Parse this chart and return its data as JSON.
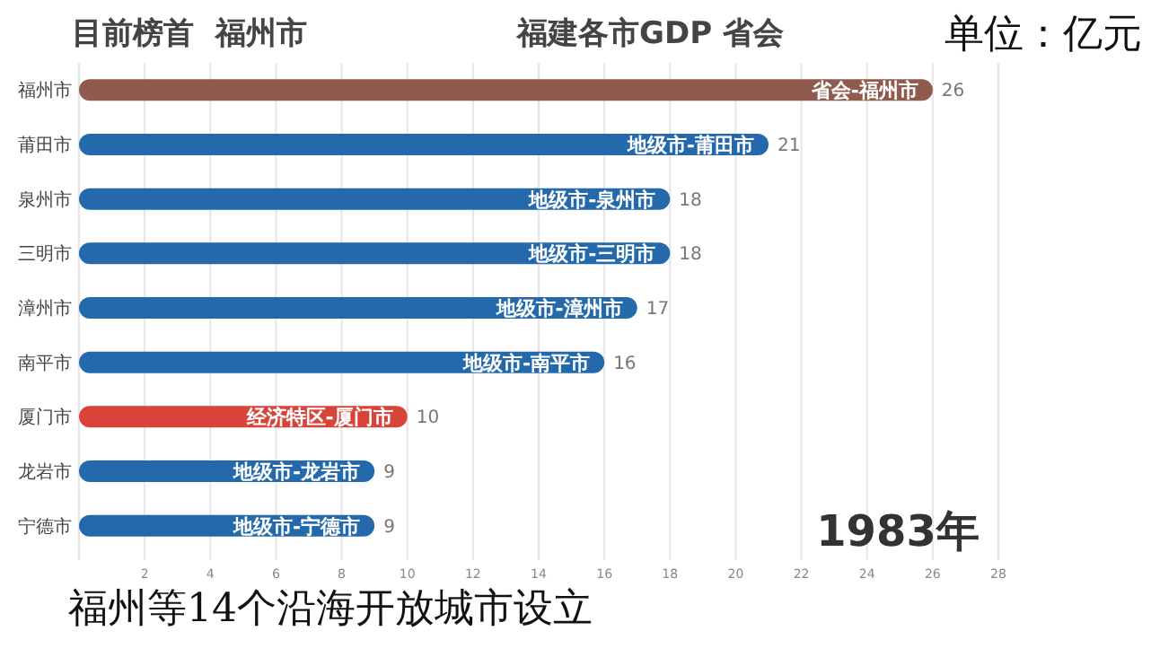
{
  "chart_data": {
    "type": "bar",
    "orientation": "horizontal",
    "title": "福建各市GDP 省会",
    "subtitle": "目前榜首  福州市",
    "categories": [
      "福州市",
      "莆田市",
      "泉州市",
      "三明市",
      "漳州市",
      "南平市",
      "厦门市",
      "龙岩市",
      "宁德市"
    ],
    "values": [
      26,
      21,
      18,
      18,
      17,
      16,
      10,
      9,
      9
    ],
    "colors": [
      "#8e5b4c",
      "#2369ab",
      "#2369ab",
      "#2369ab",
      "#2369ab",
      "#2369ab",
      "#d8443a",
      "#2369ab",
      "#2369ab"
    ],
    "xlim": [
      0,
      28
    ],
    "xticks": [
      2,
      4,
      6,
      8,
      10,
      12,
      14,
      16,
      18,
      20,
      22,
      24,
      26,
      28
    ],
    "grid": "x",
    "data_labels": true,
    "annotations": [
      {
        "text": "省会-福州市",
        "x": 26,
        "y": "福州市"
      },
      {
        "text": "地级市-莆田市",
        "x": 21,
        "y": "莆田市"
      },
      {
        "text": "地级市-泉州市",
        "x": 18,
        "y": "泉州市"
      },
      {
        "text": "地级市-三明市",
        "x": 18,
        "y": "三明市"
      },
      {
        "text": "地级市-漳州市",
        "x": 17,
        "y": "漳州市"
      },
      {
        "text": "地级市-南平市",
        "x": 16,
        "y": "南平市"
      },
      {
        "text": "经济特区-厦门市",
        "x": 10,
        "y": "厦门市"
      },
      {
        "text": "地级市-龙岩市",
        "x": 9,
        "y": "龙岩市"
      },
      {
        "text": "地级市-宁德市",
        "x": 9,
        "y": "宁德市"
      },
      "单位：亿元",
      "1983年",
      "福州等14个沿海开放城市设立"
    ]
  }
}
